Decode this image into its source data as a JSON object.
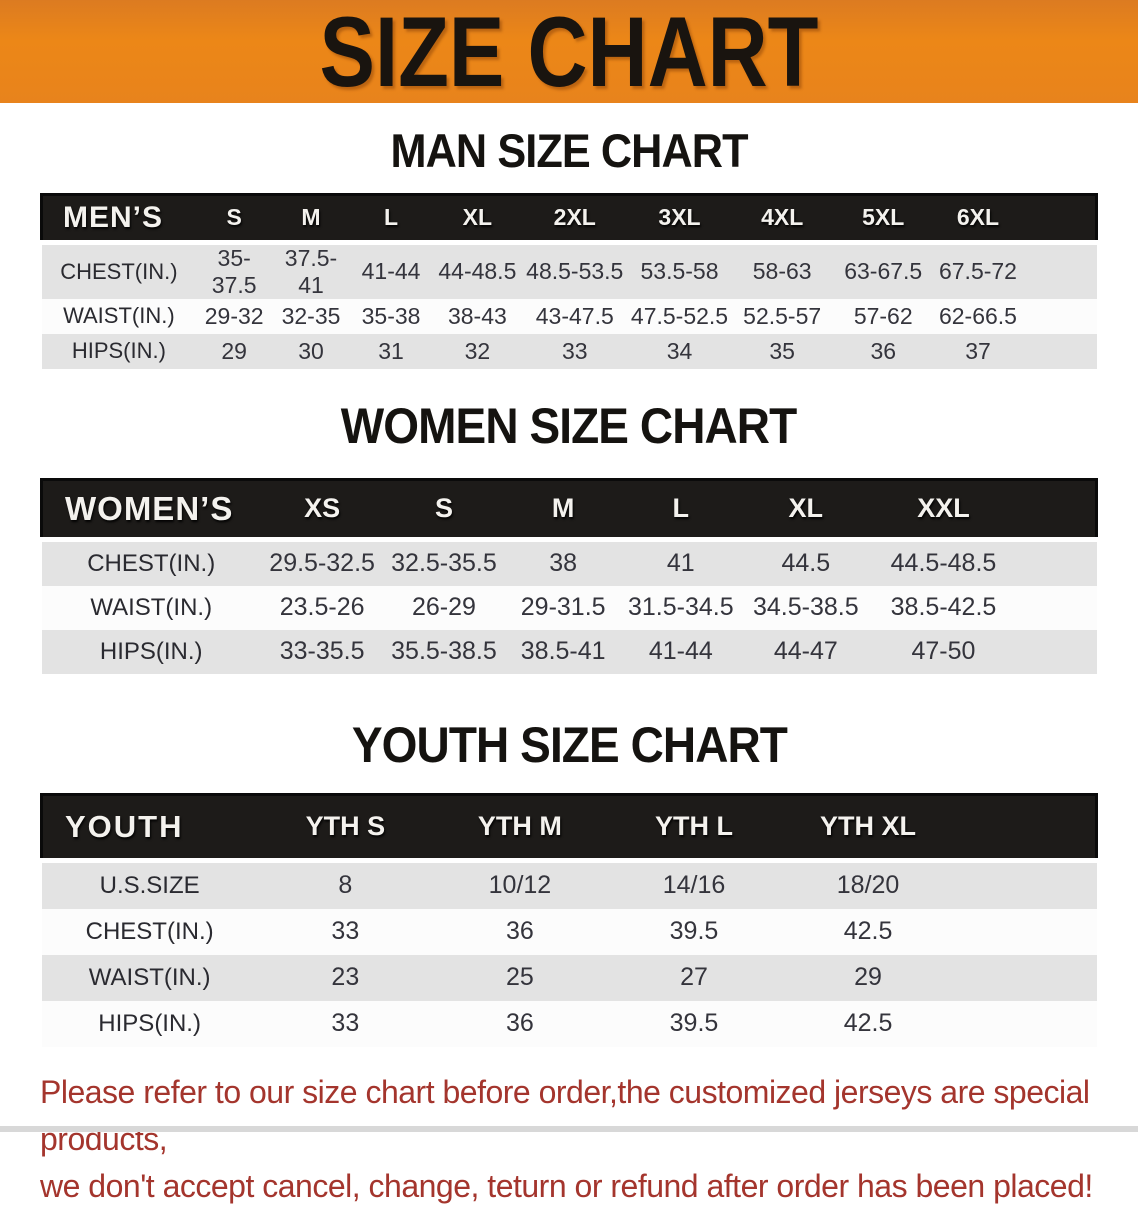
{
  "banner": {
    "title": "SIZE CHART"
  },
  "sections": {
    "man": {
      "heading": "MAN SIZE CHART"
    },
    "women": {
      "heading": "WOMEN SIZE CHART"
    },
    "youth": {
      "heading": "YOUTH SIZE CHART"
    }
  },
  "tables": {
    "men": {
      "header": [
        "MEN’S",
        "S",
        "M",
        "L",
        "XL",
        "2XL",
        "3XL",
        "4XL",
        "5XL",
        "6XL"
      ],
      "rows": [
        {
          "label": "CHEST(IN.)",
          "values": [
            "35-37.5",
            "37.5-41",
            "41-44",
            "44-48.5",
            "48.5-53.5",
            "53.5-58",
            "58-63",
            "63-67.5",
            "67.5-72"
          ]
        },
        {
          "label": "WAIST(IN.)",
          "values": [
            "29-32",
            "32-35",
            "35-38",
            "38-43",
            "43-47.5",
            "47.5-52.5",
            "52.5-57",
            "57-62",
            "62-66.5"
          ]
        },
        {
          "label": "HIPS(IN.)",
          "values": [
            "29",
            "30",
            "31",
            "32",
            "33",
            "34",
            "35",
            "36",
            "37"
          ]
        }
      ]
    },
    "women": {
      "header": [
        "WOMEN’S",
        "XS",
        "S",
        "M",
        "L",
        "XL",
        "XXL"
      ],
      "rows": [
        {
          "label": "CHEST(IN.)",
          "values": [
            "29.5-32.5",
            "32.5-35.5",
            "38",
            "41",
            "44.5",
            "44.5-48.5"
          ]
        },
        {
          "label": "WAIST(IN.)",
          "values": [
            "23.5-26",
            "26-29",
            "29-31.5",
            "31.5-34.5",
            "34.5-38.5",
            "38.5-42.5"
          ]
        },
        {
          "label": "HIPS(IN.)",
          "values": [
            "33-35.5",
            "35.5-38.5",
            "38.5-41",
            "41-44",
            "44-47",
            "47-50"
          ]
        }
      ]
    },
    "youth": {
      "header": [
        "YOUTH",
        "YTH S",
        "YTH M",
        "YTH L",
        "YTH XL"
      ],
      "rows": [
        {
          "label": "U.S.SIZE",
          "values": [
            "8",
            "10/12",
            "14/16",
            "18/20"
          ]
        },
        {
          "label": "CHEST(IN.)",
          "values": [
            "33",
            "36",
            "39.5",
            "42.5"
          ]
        },
        {
          "label": "WAIST(IN.)",
          "values": [
            "23",
            "25",
            "27",
            "29"
          ]
        },
        {
          "label": "HIPS(IN.)",
          "values": [
            "33",
            "36",
            "39.5",
            "42.5"
          ]
        }
      ]
    }
  },
  "disclaimer": {
    "line1": "Please refer to our size chart before order,the customized jerseys are special products,",
    "line2": "we don't accept cancel, change, teturn or refund after order has been placed!"
  },
  "colors": {
    "banner_orange": "#E8831C",
    "header_black": "#1D1B19",
    "row_gray": "#E3E3E3",
    "row_white": "#FCFCFC",
    "disclaimer_red": "#A4352D"
  }
}
